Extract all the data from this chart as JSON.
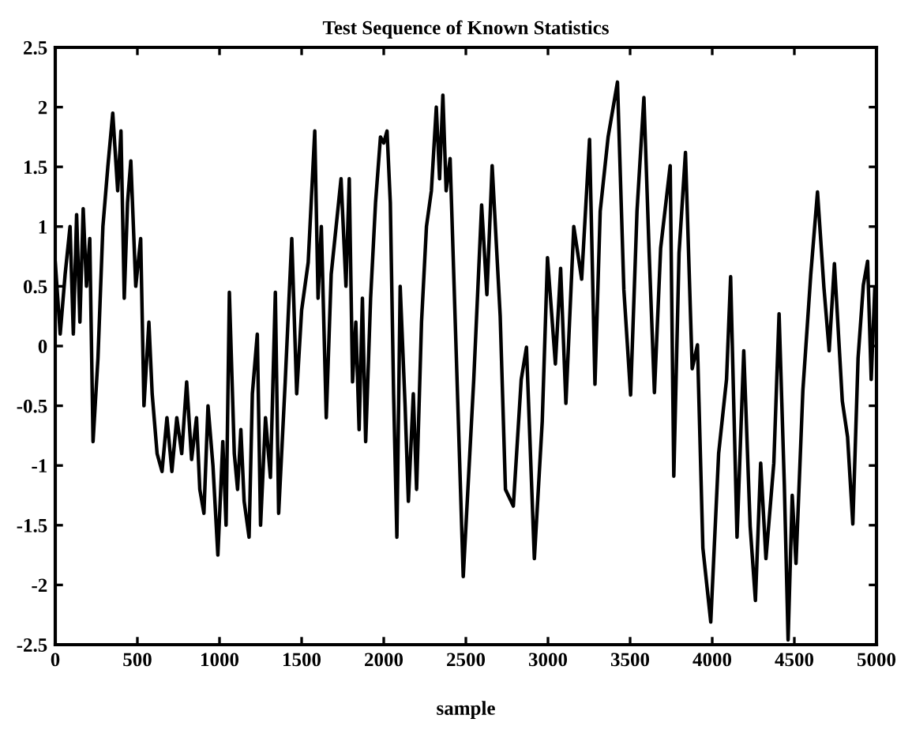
{
  "chart_data": {
    "type": "line",
    "title": "Test Sequence of Known Statistics",
    "xlabel": "sample",
    "x": [
      0,
      30,
      60,
      90,
      110,
      130,
      150,
      170,
      190,
      210,
      230,
      260,
      290,
      320,
      350,
      380,
      400,
      420,
      440,
      460,
      490,
      520,
      540,
      570,
      590,
      620,
      650,
      680,
      710,
      740,
      770,
      800,
      830,
      860,
      880,
      905,
      930,
      960,
      990,
      1020,
      1040,
      1060,
      1090,
      1110,
      1130,
      1150,
      1180,
      1200,
      1230,
      1250,
      1280,
      1310,
      1340,
      1360,
      1400,
      1440,
      1470,
      1500,
      1540,
      1580,
      1600,
      1620,
      1650,
      1680,
      1710,
      1740,
      1770,
      1790,
      1810,
      1830,
      1850,
      1870,
      1890,
      1920,
      1950,
      1980,
      2000,
      2020,
      2040,
      2060,
      2080,
      2100,
      2130,
      2150,
      2180,
      2200,
      2230,
      2260,
      2290,
      2320,
      2340,
      2360,
      2380,
      2404,
      2484,
      2548,
      2596,
      2628,
      2660,
      2709,
      2741,
      2789,
      2837,
      2869,
      2917,
      2965,
      2997,
      3045,
      3077,
      3109,
      3157,
      3205,
      3253,
      3286,
      3318,
      3366,
      3423,
      3462,
      3503,
      3542,
      3584,
      3616,
      3648,
      3686,
      3744,
      3766,
      3798,
      3837,
      3878,
      3910,
      3943,
      3991,
      4039,
      4087,
      4112,
      4151,
      4192,
      4231,
      4263,
      4295,
      4327,
      4375,
      4407,
      4439,
      4462,
      4487,
      4510,
      4552,
      4600,
      4641,
      4680,
      4712,
      4744,
      4792,
      4824,
      4856,
      4888,
      4920,
      4946,
      4968,
      4990
    ],
    "series": [
      {
        "color": "#000000",
        "values": [
          0.7,
          0.1,
          0.6,
          1.0,
          0.1,
          1.1,
          0.2,
          1.15,
          0.5,
          0.9,
          -0.8,
          -0.1,
          1.0,
          1.5,
          1.95,
          1.3,
          1.8,
          0.4,
          1.2,
          1.55,
          0.5,
          0.9,
          -0.5,
          0.2,
          -0.4,
          -0.9,
          -1.05,
          -0.6,
          -1.05,
          -0.6,
          -0.9,
          -0.3,
          -0.95,
          -0.6,
          -1.2,
          -1.4,
          -0.5,
          -1.0,
          -1.75,
          -0.8,
          -1.5,
          0.45,
          -0.9,
          -1.2,
          -0.7,
          -1.3,
          -1.6,
          -0.4,
          0.1,
          -1.5,
          -0.6,
          -1.1,
          0.45,
          -1.4,
          -0.3,
          0.9,
          -0.4,
          0.3,
          0.7,
          1.8,
          0.4,
          1.0,
          -0.6,
          0.6,
          1.0,
          1.4,
          0.5,
          1.4,
          -0.3,
          0.2,
          -0.7,
          0.4,
          -0.8,
          0.4,
          1.2,
          1.75,
          1.7,
          1.8,
          1.2,
          -0.4,
          -1.6,
          0.5,
          -0.5,
          -1.3,
          -0.4,
          -1.2,
          0.2,
          1.0,
          1.3,
          2.0,
          1.4,
          2.1,
          1.3,
          1.57,
          -1.93,
          -0.28,
          1.18,
          0.43,
          1.51,
          0.25,
          -1.2,
          -1.34,
          -0.28,
          -0.01,
          -1.78,
          -0.63,
          0.74,
          -0.15,
          0.65,
          -0.48,
          1.0,
          0.56,
          1.73,
          -0.32,
          1.13,
          1.75,
          2.21,
          0.47,
          -0.41,
          1.13,
          2.08,
          0.78,
          -0.39,
          0.82,
          1.51,
          -1.09,
          0.78,
          1.62,
          -0.19,
          0.01,
          -1.69,
          -2.31,
          -0.9,
          -0.28,
          0.58,
          -1.6,
          -0.04,
          -1.51,
          -2.13,
          -0.98,
          -1.78,
          -0.98,
          0.27,
          -1.16,
          -2.46,
          -1.25,
          -1.82,
          -0.37,
          0.6,
          1.29,
          0.49,
          -0.04,
          0.69,
          -0.46,
          -0.76,
          -1.49,
          -0.1,
          0.51,
          0.71,
          -0.28,
          0.49
        ]
      }
    ],
    "xlim": [
      0,
      5000
    ],
    "ylim": [
      -2.5,
      2.5
    ],
    "xticks": [
      0,
      500,
      1000,
      1500,
      2000,
      2500,
      3000,
      3500,
      4000,
      4500,
      5000
    ],
    "yticks": [
      {
        "value": -2.5,
        "label": "-2.5"
      },
      {
        "value": -2,
        "label": "-2"
      },
      {
        "value": -1.5,
        "label": "-1.5"
      },
      {
        "value": -1,
        "label": "-1"
      },
      {
        "value": -0.5,
        "label": "-0.5"
      },
      0,
      0.5,
      1,
      1.5,
      2,
      2.5
    ],
    "grid": false,
    "line_style": "solid",
    "marker": "none"
  }
}
